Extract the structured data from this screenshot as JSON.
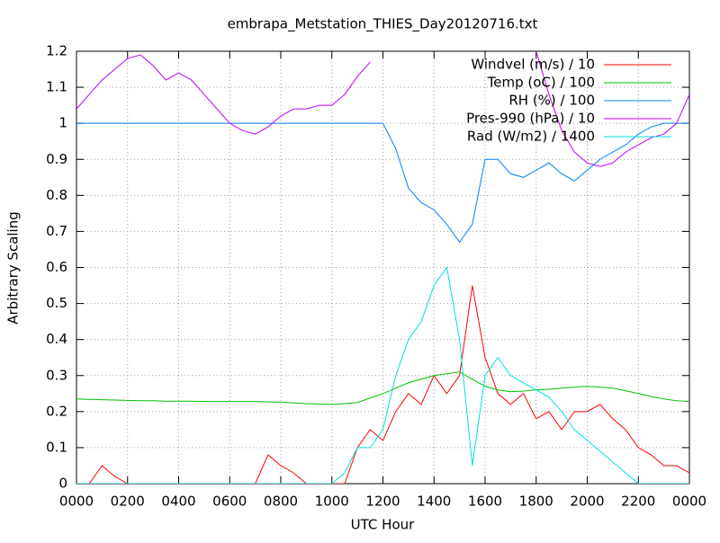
{
  "chart_data": {
    "type": "line",
    "title": "embrapa_Metstation_THIES_Day20120716.txt",
    "x_label": "UTC Hour",
    "y_label": "Arbitrary Scaling",
    "x": [
      0,
      0.5,
      1,
      1.5,
      2,
      2.5,
      3,
      3.5,
      4,
      4.5,
      5,
      5.5,
      6,
      6.5,
      7,
      7.5,
      8,
      8.5,
      9,
      9.5,
      10,
      10.5,
      11,
      11.5,
      12,
      12.5,
      13,
      13.5,
      14,
      14.5,
      15,
      15.5,
      16,
      16.5,
      17,
      17.5,
      18,
      18.5,
      19,
      19.5,
      20,
      20.5,
      21,
      21.5,
      22,
      22.5,
      23,
      23.5,
      24
    ],
    "series": [
      {
        "name": "Windvel (m/s) / 10",
        "color": "#ff0000",
        "values": [
          0,
          0,
          0.05,
          0.02,
          0,
          0,
          0,
          0,
          0,
          0,
          0,
          0,
          0,
          0,
          0,
          0.08,
          0.05,
          0.03,
          0,
          0,
          0,
          0,
          0.1,
          0.15,
          0.12,
          0.2,
          0.25,
          0.22,
          0.3,
          0.25,
          0.3,
          0.55,
          0.35,
          0.25,
          0.22,
          0.25,
          0.18,
          0.2,
          0.15,
          0.2,
          0.2,
          0.22,
          0.18,
          0.15,
          0.1,
          0.08,
          0.05,
          0.05,
          0.03
        ]
      },
      {
        "name": "Temp (oC) / 100",
        "color": "#00c000",
        "values": [
          0.235,
          0.234,
          0.233,
          0.232,
          0.231,
          0.23,
          0.23,
          0.229,
          0.229,
          0.229,
          0.228,
          0.228,
          0.228,
          0.228,
          0.228,
          0.227,
          0.226,
          0.224,
          0.222,
          0.221,
          0.22,
          0.222,
          0.225,
          0.238,
          0.25,
          0.265,
          0.28,
          0.29,
          0.3,
          0.305,
          0.31,
          0.29,
          0.27,
          0.26,
          0.255,
          0.257,
          0.26,
          0.262,
          0.265,
          0.268,
          0.27,
          0.268,
          0.265,
          0.258,
          0.25,
          0.242,
          0.235,
          0.23,
          0.228
        ]
      },
      {
        "name": "RH (%) / 100",
        "color": "#0080ff",
        "values": [
          1,
          1,
          1,
          1,
          1,
          1,
          1,
          1,
          1,
          1,
          1,
          1,
          1,
          1,
          1,
          1,
          1,
          1,
          1,
          1,
          1,
          1,
          1,
          1,
          1,
          0.93,
          0.82,
          0.78,
          0.76,
          0.72,
          0.67,
          0.72,
          0.9,
          0.9,
          0.86,
          0.85,
          0.87,
          0.89,
          0.86,
          0.84,
          0.87,
          0.9,
          0.92,
          0.94,
          0.97,
          0.99,
          1,
          1,
          1
        ]
      },
      {
        "name": "Pres-990 (hPa) / 10",
        "color": "#c000ff",
        "values": [
          1.04,
          1.08,
          1.12,
          1.15,
          1.18,
          1.19,
          1.16,
          1.12,
          1.14,
          1.12,
          1.08,
          1.04,
          1.0,
          0.98,
          0.97,
          0.99,
          1.02,
          1.04,
          1.04,
          1.05,
          1.05,
          1.08,
          1.13,
          1.17,
          null,
          null,
          null,
          null,
          null,
          null,
          null,
          null,
          null,
          null,
          null,
          null,
          1.2,
          1.08,
          0.98,
          0.92,
          0.89,
          0.88,
          0.89,
          0.92,
          0.94,
          0.96,
          0.97,
          1.0,
          1.08
        ]
      },
      {
        "name": "Rad (W/m2) / 1400",
        "color": "#00e0e0",
        "values": [
          0,
          0,
          0,
          0,
          0,
          0,
          0,
          0,
          0,
          0,
          0,
          0,
          0,
          0,
          0,
          0,
          0,
          0,
          0,
          0,
          0,
          0.03,
          0.1,
          0.1,
          0.15,
          0.3,
          0.4,
          0.45,
          0.55,
          0.6,
          0.4,
          0.05,
          0.3,
          0.35,
          0.3,
          0.28,
          0.26,
          0.24,
          0.2,
          0.15,
          0.12,
          0.09,
          0.06,
          0.03,
          0,
          0,
          0,
          0,
          0
        ]
      }
    ],
    "xlim": [
      0,
      24
    ],
    "xticks": [
      {
        "value": 0,
        "label": "0000"
      },
      {
        "value": 2,
        "label": "0200"
      },
      {
        "value": 4,
        "label": "0400"
      },
      {
        "value": 6,
        "label": "0600"
      },
      {
        "value": 8,
        "label": "0800"
      },
      {
        "value": 10,
        "label": "1000"
      },
      {
        "value": 12,
        "label": "1200"
      },
      {
        "value": 14,
        "label": "1400"
      },
      {
        "value": 16,
        "label": "1600"
      },
      {
        "value": 18,
        "label": "1800"
      },
      {
        "value": 20,
        "label": "2000"
      },
      {
        "value": 22,
        "label": "2200"
      },
      {
        "value": 24,
        "label": "0000"
      }
    ],
    "ylim": [
      0,
      1.2
    ],
    "yticks": [
      0,
      0.1,
      0.2,
      0.3,
      0.4,
      0.5,
      0.6,
      0.7,
      0.8,
      0.9,
      1,
      1.1,
      1.2
    ],
    "grid": true,
    "legend": "top-right"
  }
}
